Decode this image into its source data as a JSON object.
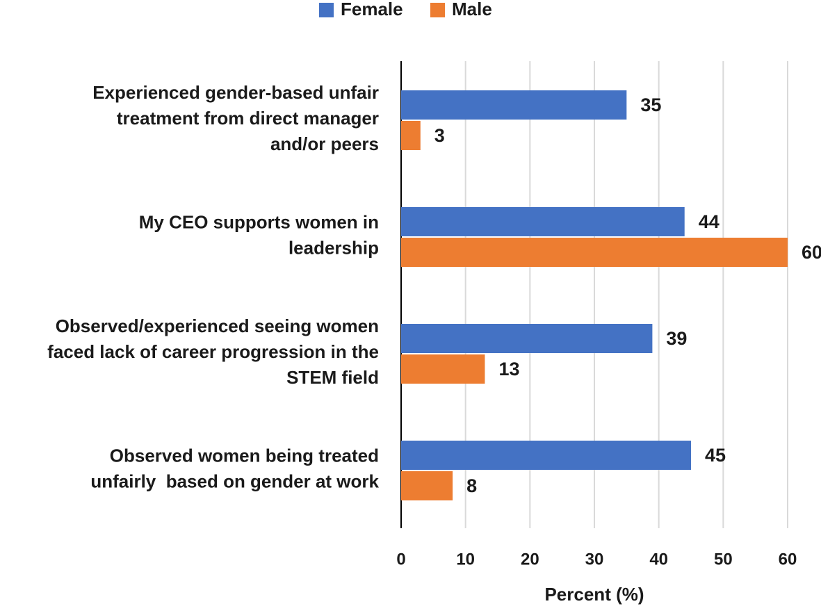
{
  "chart_data": {
    "type": "barh",
    "categories": [
      "Experienced gender-based unfair\ntreatment from direct manager\nand/or peers",
      "My CEO supports women in\nleadership",
      "Observed/experienced seeing women\nfaced lack of career progression in the\nSTEM field",
      "Observed women being treated\nunfairly  based on gender at work"
    ],
    "series": [
      {
        "name": "Female",
        "color": "#4472c4",
        "values": [
          35,
          44,
          39,
          45
        ]
      },
      {
        "name": "Male",
        "color": "#ed7d31",
        "values": [
          3,
          60,
          13,
          8
        ]
      }
    ],
    "x_label": "Percent (%)",
    "xlim": [
      0,
      60
    ],
    "xticks": [
      0,
      10,
      20,
      30,
      40,
      50,
      60
    ],
    "grid": true,
    "legend": "top"
  }
}
